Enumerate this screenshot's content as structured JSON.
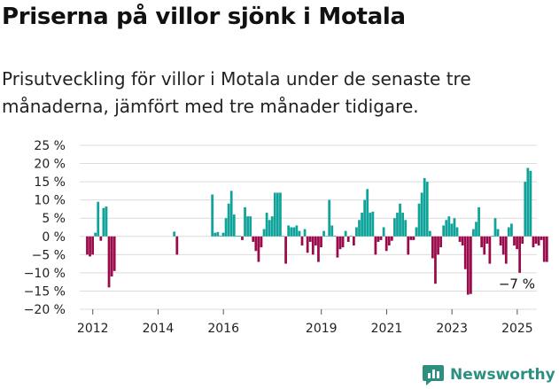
{
  "title": "Priserna på villor sjönk i Motala",
  "subtitle": "Prisutveckling för villor i Motala under de senaste tre månaderna, jämfört med tre månader tidigare.",
  "brand": {
    "name": "Newsworthy",
    "icon": "newsworthy-logo-icon",
    "color": "#2d8f80"
  },
  "colors": {
    "positive": "#0fa39a",
    "negative": "#9b0b4c",
    "grid": "#dcdcdc"
  },
  "chart_data": {
    "type": "bar",
    "title": "Priserna på villor sjönk i Motala",
    "xlabel": "",
    "ylabel": "",
    "ylim": [
      -20,
      25
    ],
    "yticks": [
      25,
      20,
      15,
      10,
      5,
      0,
      -5,
      -10,
      -15,
      -20
    ],
    "ytick_labels": [
      "25 %",
      "20 %",
      "15 %",
      "10 %",
      "5 %",
      "0 %",
      "−5 %",
      "−10 %",
      "−15 %",
      "−20 %"
    ],
    "xticks": [
      2012,
      2014,
      2016,
      2019,
      2021,
      2023,
      2025
    ],
    "x_start": 2011.83,
    "x_step": 0.0833,
    "grid": true,
    "annotation": {
      "text": "−7 %",
      "value": -7
    },
    "values": [
      -5,
      -5.5,
      -5,
      1,
      9.5,
      -1.2,
      7.8,
      8.2,
      -14,
      -11,
      -9.5,
      null,
      null,
      null,
      null,
      null,
      null,
      null,
      null,
      null,
      null,
      null,
      null,
      null,
      null,
      null,
      null,
      null,
      null,
      null,
      null,
      null,
      1.3,
      -5,
      null,
      null,
      null,
      null,
      null,
      null,
      null,
      null,
      null,
      null,
      null,
      null,
      11.5,
      1,
      1.2,
      0.2,
      1,
      5,
      9,
      12.5,
      6,
      0.2,
      0.2,
      -1,
      8,
      5.5,
      5.5,
      -1.5,
      -4,
      -7,
      -3,
      2,
      6.5,
      4.5,
      5.5,
      12,
      12,
      12,
      0.1,
      -7.5,
      3,
      2.5,
      2.5,
      3,
      1.5,
      -2.5,
      2,
      -4.5,
      -1.5,
      -5,
      -2.5,
      -7,
      -3,
      1.5,
      0.1,
      10,
      3,
      0.2,
      -5.8,
      -3.5,
      -3,
      1.5,
      -1.5,
      0.2,
      -2.5,
      2.5,
      4.5,
      6.5,
      10,
      13,
      6.5,
      6.8,
      -5,
      -1.5,
      -1,
      2.5,
      -4,
      -2.5,
      -1.2,
      5,
      6.5,
      9,
      6.5,
      4.5,
      -5,
      -1,
      -1,
      2.5,
      9,
      12,
      16,
      15,
      1.5,
      -6,
      -13,
      -5,
      -3,
      3,
      4.5,
      5.5,
      3.5,
      5,
      2.5,
      -1.5,
      -2.5,
      -9,
      -16,
      -15.8,
      2,
      4,
      8,
      -3,
      -5,
      -2,
      -7.5,
      0.2,
      5,
      2,
      -2.5,
      -5,
      -7.5,
      2.5,
      3.5,
      -2.5,
      -3.5,
      -10,
      -2,
      15,
      18.8,
      18,
      -3,
      -2,
      -2.5,
      -1,
      -7,
      -7
    ]
  }
}
